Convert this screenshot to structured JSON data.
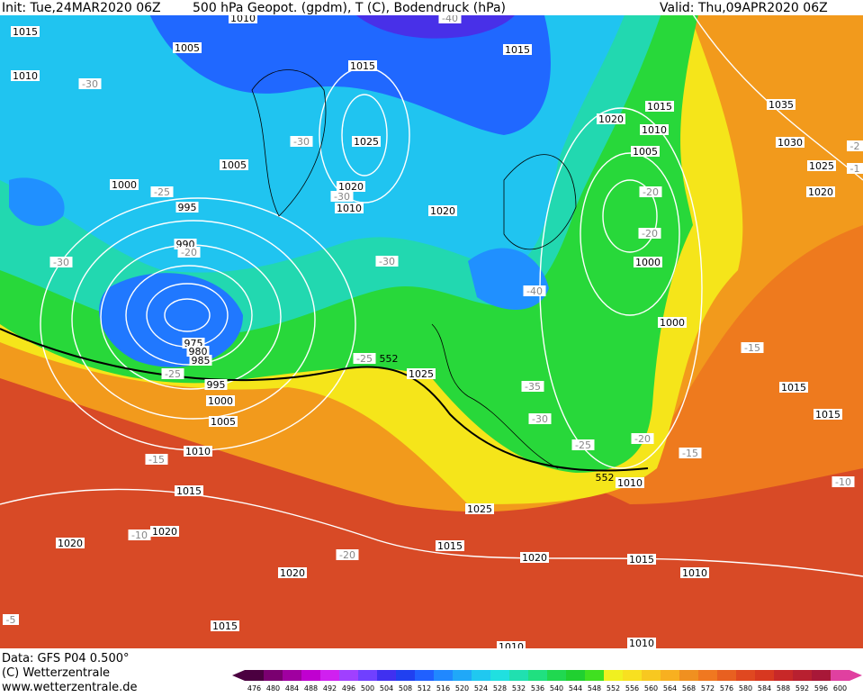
{
  "header": {
    "init": "Init: Tue,24MAR2020 06Z",
    "title": "500 hPa Geopot. (gpdm), T (C), Bodendruck (hPa)",
    "valid": "Valid: Thu,09APR2020 06Z"
  },
  "footer": {
    "data": "Data: GFS P04 0.500°",
    "copyright": "(C) Wetterzentrale",
    "url": "www.wetterzentrale.de"
  },
  "legend": {
    "levels": [
      476,
      480,
      484,
      488,
      492,
      496,
      500,
      504,
      508,
      512,
      516,
      520,
      524,
      528,
      532,
      536,
      540,
      544,
      548,
      552,
      556,
      560,
      564,
      568,
      572,
      576,
      580,
      584,
      588,
      592,
      596,
      600
    ],
    "colors": [
      "#4b0040",
      "#7a0070",
      "#a000a0",
      "#c000d0",
      "#d020f0",
      "#a040ff",
      "#7040ff",
      "#4030f0",
      "#2040f0",
      "#2060ff",
      "#2088ff",
      "#20a8f8",
      "#20c8f0",
      "#20e0e0",
      "#20e0b0",
      "#20e080",
      "#20d850",
      "#20d030",
      "#40e020",
      "#f0f020",
      "#f8e020",
      "#f8c820",
      "#f8b020",
      "#f09020",
      "#f07820",
      "#e86020",
      "#e04820",
      "#d83820",
      "#c82828",
      "#b82030",
      "#a81838",
      "#e040a0"
    ]
  },
  "map": {
    "isobar_labels": [
      "1015",
      "1010",
      "1005",
      "1015",
      "1015",
      "1025",
      "1005",
      "1000",
      "995",
      "1020",
      "1010",
      "1020",
      "990",
      "975",
      "980",
      "985",
      "995",
      "1000",
      "1005",
      "1010",
      "1015",
      "1020",
      "1020",
      "1025",
      "1025",
      "1015",
      "1020",
      "1020",
      "1015",
      "1010",
      "1015",
      "1010",
      "1010",
      "1010",
      "1020",
      "1015",
      "1010",
      "1005",
      "1000",
      "1000",
      "1035",
      "1030",
      "1025",
      "1020",
      "1015",
      "1015",
      "1010"
    ],
    "temperature_labels": [
      "-30",
      "-30",
      "-30",
      "-25",
      "-20",
      "-30",
      "-30",
      "-40",
      "-20",
      "-20",
      "-25",
      "-25",
      "-35",
      "-30",
      "-25",
      "-20",
      "-15",
      "-15",
      "-15",
      "-10",
      "-20",
      "-10",
      "-5",
      "-40",
      "-2",
      "-1"
    ],
    "height_labels": [
      "552",
      "552"
    ]
  }
}
